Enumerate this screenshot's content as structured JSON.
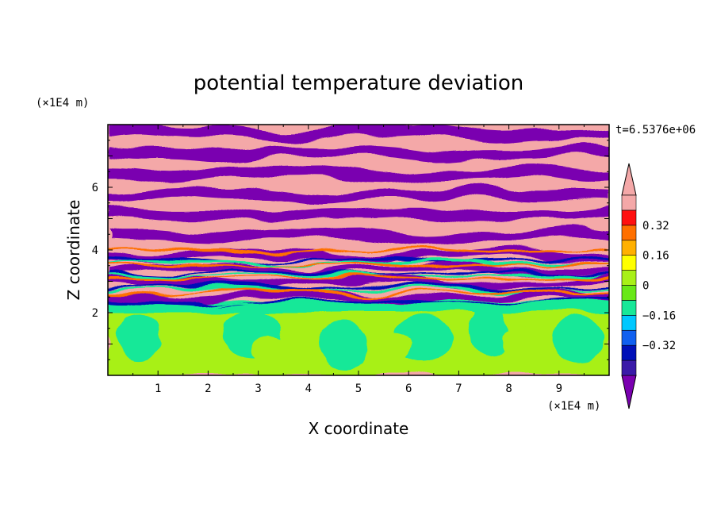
{
  "chart_data": {
    "type": "heatmap",
    "title": "potential temperature deviation",
    "xlabel": "X coordinate",
    "ylabel": "Z coordinate",
    "x_units": "(×1E4 m)",
    "z_units": "(×1E4 m)",
    "time_label": "t=6.5376e+06",
    "xlim": [
      0,
      10
    ],
    "ylim": [
      0,
      8
    ],
    "x_ticks": [
      1,
      2,
      3,
      4,
      5,
      6,
      7,
      8,
      9
    ],
    "y_ticks": [
      2,
      4,
      6
    ],
    "colorbar": {
      "levels": [
        -0.48,
        -0.4,
        -0.32,
        -0.24,
        -0.16,
        -0.08,
        0,
        0.08,
        0.16,
        0.24,
        0.32,
        0.4,
        0.48
      ],
      "tick_values": [
        0.32,
        0.16,
        0,
        -0.16,
        -0.32
      ],
      "tick_labels": [
        "0.32",
        "0.16",
        "0",
        "−0.16",
        "−0.32"
      ],
      "colors": [
        "#7a00b0",
        "#3a1aa8",
        "#0010b8",
        "#1060f0",
        "#00c8ff",
        "#18e898",
        "#68e818",
        "#a8f018",
        "#ffff00",
        "#ffb000",
        "#ff7000",
        "#ff1010",
        "#f4a8a8"
      ],
      "extend": "both"
    }
  }
}
